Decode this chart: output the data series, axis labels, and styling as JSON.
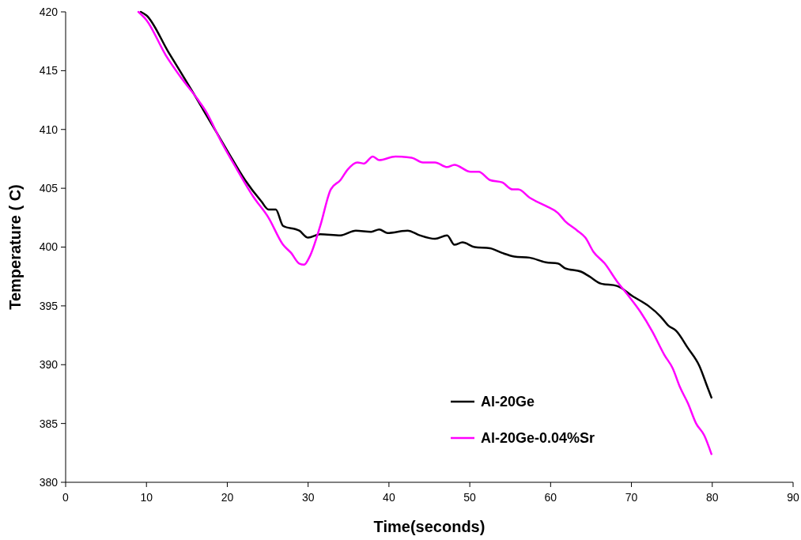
{
  "chart_data": {
    "type": "line",
    "xlabel": "Time(seconds)",
    "ylabel": "Temperature ( C)",
    "xlim": [
      0,
      90
    ],
    "ylim": [
      380,
      420
    ],
    "xticks": [
      0,
      10,
      20,
      30,
      40,
      50,
      60,
      70,
      80,
      90
    ],
    "yticks": [
      380,
      385,
      390,
      395,
      400,
      405,
      410,
      415,
      420
    ],
    "grid": false,
    "legend": "bottom right",
    "marker": "none",
    "line_style": "solid",
    "series": [
      {
        "name": "Al-20Ge",
        "color": "#000000",
        "x": [
          9.3,
          10,
          12.7,
          15.8,
          18.8,
          20,
          22.2,
          24.2,
          25.1,
          26,
          26.9,
          28.9,
          30,
          31.5,
          34,
          35.9,
          37.8,
          38.8,
          39.8,
          42.3,
          43.8,
          45.7,
          47.2,
          48.1,
          49.1,
          50.6,
          52.5,
          54,
          55.5,
          57.4,
          59.4,
          60.9,
          61.8,
          63.8,
          64.8,
          66.2,
          68.2,
          70.2,
          72.1,
          73.6,
          74.6,
          75.5,
          77,
          78.4,
          79.4,
          79.9
        ],
        "values": [
          420,
          419.7,
          416.6,
          413.1,
          409.6,
          408.2,
          405.7,
          403.9,
          403.2,
          403.2,
          401.8,
          401.4,
          400.8,
          401.1,
          401.0,
          401.4,
          401.3,
          401.5,
          401.2,
          401.4,
          401.0,
          400.7,
          401.0,
          400.2,
          400.4,
          400.0,
          399.9,
          399.5,
          399.2,
          399.1,
          398.7,
          398.6,
          398.2,
          397.9,
          397.5,
          396.9,
          396.7,
          395.8,
          395.0,
          394.1,
          393.3,
          392.9,
          391.4,
          389.9,
          388.1,
          387.2
        ]
      },
      {
        "name": "Al-20Ge-0.04%Sr",
        "color": "#ff00ff",
        "x": [
          9,
          10,
          12.4,
          14.4,
          16.3,
          17.3,
          19.3,
          21.2,
          23.2,
          25.1,
          26.9,
          27.9,
          28.9,
          29.5,
          30.2,
          31.5,
          32.8,
          34,
          34.9,
          36.1,
          36.9,
          38,
          38.8,
          40.8,
          42.8,
          44.2,
          45.7,
          47.2,
          48.1,
          50.1,
          51.1,
          52.5,
          54,
          55.3,
          56,
          57.4,
          59.4,
          60.9,
          61.8,
          63.3,
          64.3,
          65.3,
          66.7,
          68.2,
          69.7,
          71.1,
          72.6,
          74.1,
          75.1,
          76,
          77,
          78,
          79,
          79.9
        ],
        "values": [
          420,
          419.3,
          416.3,
          414.3,
          412.6,
          411.6,
          408.9,
          406.6,
          404.3,
          402.5,
          400.2,
          399.5,
          398.6,
          398.5,
          399.2,
          401.8,
          404.9,
          405.7,
          406.6,
          407.2,
          407.1,
          407.7,
          407.4,
          407.7,
          407.6,
          407.2,
          407.2,
          406.8,
          407.0,
          406.4,
          406.4,
          405.7,
          405.5,
          404.9,
          404.9,
          404.2,
          403.5,
          402.9,
          402.2,
          401.4,
          400.8,
          399.6,
          398.6,
          397.1,
          395.8,
          394.5,
          392.8,
          390.8,
          389.7,
          388.1,
          386.7,
          385.0,
          384.0,
          382.4
        ]
      }
    ]
  }
}
